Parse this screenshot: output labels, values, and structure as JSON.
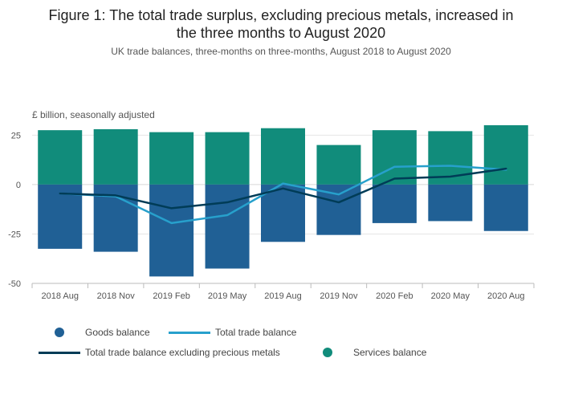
{
  "title_line1": "Figure 1: The total trade surplus, excluding precious metals, increased in",
  "title_line2": "the three months to August 2020",
  "subtitle": "UK trade balances, three-months on three-months, August 2018 to August 2020",
  "unit_label": "£ billion, seasonally adjusted",
  "colors": {
    "goods": "#206095",
    "services": "#118C7B",
    "total": "#27A0CC",
    "total_ex_pm": "#003C57"
  },
  "chart_data": {
    "type": "bar",
    "categories": [
      "2018 Aug",
      "2018 Nov",
      "2019 Feb",
      "2019 May",
      "2019 Aug",
      "2019 Nov",
      "2020 Feb",
      "2020 May",
      "2020 Aug"
    ],
    "ylim": [
      -50,
      30
    ],
    "yticks": [
      25,
      0,
      -25,
      -50
    ],
    "series": [
      {
        "name": "Goods balance",
        "kind": "bar",
        "values": [
          -32.5,
          -34,
          -46.5,
          -42.5,
          -29,
          -25.5,
          -19.5,
          -18.5,
          -23.5
        ]
      },
      {
        "name": "Services balance",
        "kind": "bar",
        "values": [
          27.5,
          28,
          26.5,
          26.5,
          28.5,
          20,
          27.5,
          27,
          30
        ]
      },
      {
        "name": "Total trade balance",
        "kind": "line",
        "values": [
          -4.5,
          -6,
          -19.5,
          -15.5,
          0.5,
          -5,
          9,
          9.5,
          7.5
        ]
      },
      {
        "name": "Total trade balance excluding precious metals",
        "kind": "line",
        "values": [
          -4.5,
          -5.5,
          -12,
          -9,
          -2,
          -9,
          3,
          4,
          8
        ]
      }
    ]
  },
  "legend": {
    "goods": "Goods balance",
    "total": "Total trade balance",
    "total_ex_pm": "Total trade balance excluding precious metals",
    "services": "Services balance"
  }
}
